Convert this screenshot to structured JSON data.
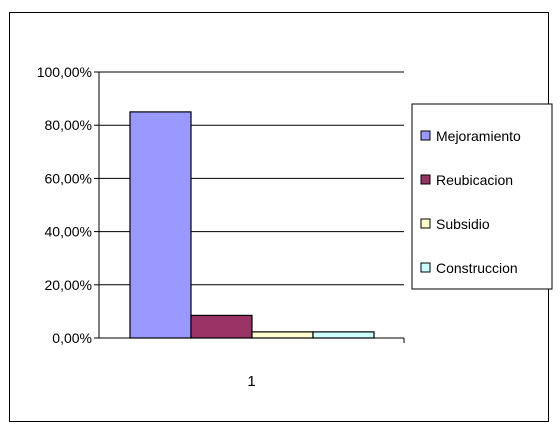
{
  "chart_data": {
    "type": "bar",
    "categories": [
      "1"
    ],
    "series": [
      {
        "name": "Mejoramiento",
        "values": [
          85
        ],
        "color": "#9999ff"
      },
      {
        "name": "Reubicacion",
        "values": [
          8.5
        ],
        "color": "#993366"
      },
      {
        "name": "Subsidio",
        "values": [
          2.3
        ],
        "color": "#ffffcc"
      },
      {
        "name": "Construccion",
        "values": [
          2.3
        ],
        "color": "#ccffff"
      }
    ],
    "yticks": [
      "0,00%",
      "20,00%",
      "40,00%",
      "60,00%",
      "80,00%",
      "100,00%"
    ],
    "ylim": [
      0,
      100
    ],
    "grid": true,
    "legend_position": "right",
    "title": "",
    "xlabel": "",
    "ylabel": ""
  }
}
